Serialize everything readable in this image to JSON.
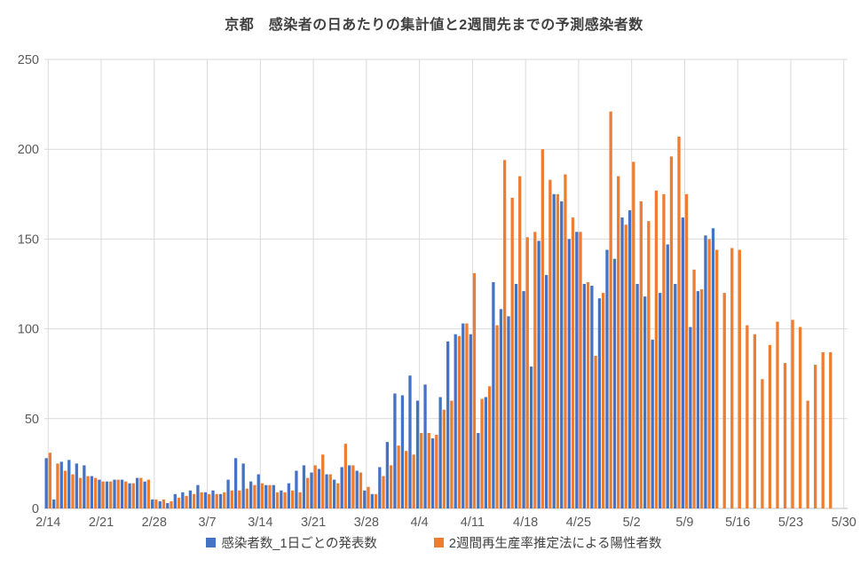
{
  "title": "京都　感染者の日あたりの集計値と2週間先までの予測感染者数",
  "colors": {
    "blue": "#4472C4",
    "orange": "#ED7D31",
    "gridline": "#D9D9D9",
    "axis_line": "#BFBFBF",
    "axis_text": "#595959",
    "title_text": "#404040"
  },
  "legend": {
    "items": [
      {
        "label": "感染者数_1日ごとの発表数",
        "color_key": "blue"
      },
      {
        "label": "2週間再生産率推定法による陽性者数",
        "color_key": "orange"
      }
    ]
  },
  "chart_data": {
    "type": "bar",
    "title": "京都　感染者の日あたりの集計値と2週間先までの予測感染者数",
    "xlabel": "",
    "ylabel": "",
    "ylim": [
      0,
      250
    ],
    "ytick_step": 50,
    "ytick_labels": [
      "0",
      "50",
      "100",
      "150",
      "200",
      "250"
    ],
    "grid": true,
    "legend_position": "bottom",
    "tick_every": 7,
    "x_tick_labels": [
      "2/14",
      "2/21",
      "2/28",
      "3/7",
      "3/14",
      "3/21",
      "3/28",
      "4/4",
      "4/11",
      "4/18",
      "4/25",
      "5/2",
      "5/9",
      "5/16",
      "5/23",
      "5/30"
    ],
    "categories": [
      "2/14",
      "2/15",
      "2/16",
      "2/17",
      "2/18",
      "2/19",
      "2/20",
      "2/21",
      "2/22",
      "2/23",
      "2/24",
      "2/25",
      "2/26",
      "2/27",
      "2/28",
      "3/1",
      "3/2",
      "3/3",
      "3/4",
      "3/5",
      "3/6",
      "3/7",
      "3/8",
      "3/9",
      "3/10",
      "3/11",
      "3/12",
      "3/13",
      "3/14",
      "3/15",
      "3/16",
      "3/17",
      "3/18",
      "3/19",
      "3/20",
      "3/21",
      "3/22",
      "3/23",
      "3/24",
      "3/25",
      "3/26",
      "3/27",
      "3/28",
      "3/29",
      "3/30",
      "3/31",
      "4/1",
      "4/2",
      "4/3",
      "4/4",
      "4/5",
      "4/6",
      "4/7",
      "4/8",
      "4/9",
      "4/10",
      "4/11",
      "4/12",
      "4/13",
      "4/14",
      "4/15",
      "4/16",
      "4/17",
      "4/18",
      "4/19",
      "4/20",
      "4/21",
      "4/22",
      "4/23",
      "4/24",
      "4/25",
      "4/26",
      "4/27",
      "4/28",
      "4/29",
      "4/30",
      "5/1",
      "5/2",
      "5/3",
      "5/4",
      "5/5",
      "5/6",
      "5/7",
      "5/8",
      "5/9",
      "5/10",
      "5/11",
      "5/12",
      "5/13",
      "5/14",
      "5/15",
      "5/16",
      "5/17",
      "5/18",
      "5/19",
      "5/20",
      "5/21",
      "5/22",
      "5/23",
      "5/24",
      "5/25",
      "5/26",
      "5/27",
      "5/28",
      "5/29",
      "5/30"
    ],
    "series": [
      {
        "name": "感染者数_1日ごとの発表数",
        "color_key": "blue",
        "values": [
          28,
          5,
          26,
          27,
          25,
          24,
          18,
          16,
          15,
          16,
          16,
          14,
          17,
          15,
          5,
          4,
          3,
          8,
          9,
          10,
          13,
          9,
          10,
          8,
          16,
          28,
          25,
          15,
          19,
          13,
          13,
          10,
          14,
          21,
          24,
          20,
          22,
          19,
          16,
          23,
          24,
          21,
          10,
          8,
          23,
          37,
          64,
          63,
          74,
          60,
          69,
          39,
          62,
          93,
          97,
          103,
          97,
          42,
          62,
          126,
          111,
          107,
          125,
          121,
          79,
          149,
          130,
          175,
          171,
          150,
          154,
          125,
          124,
          117,
          144,
          139,
          162,
          166,
          125,
          118,
          94,
          120,
          147,
          125,
          162,
          101,
          121,
          152,
          156,
          null,
          null,
          null,
          null,
          null,
          null,
          null,
          null,
          null,
          null,
          null,
          null,
          null,
          null,
          null,
          null,
          null
        ]
      },
      {
        "name": "2週間再生産率推定法による陽性者数",
        "color_key": "orange",
        "values": [
          31,
          25,
          21,
          19,
          17,
          18,
          17,
          15,
          15,
          16,
          15,
          14,
          17,
          16,
          5,
          5,
          4,
          6,
          7,
          8,
          9,
          8,
          8,
          9,
          10,
          10,
          11,
          13,
          14,
          13,
          9,
          9,
          10,
          9,
          17,
          24,
          30,
          19,
          14,
          36,
          24,
          20,
          12,
          8,
          18,
          24,
          35,
          32,
          30,
          42,
          42,
          41,
          55,
          60,
          96,
          103,
          131,
          61,
          68,
          102,
          194,
          173,
          185,
          151,
          154,
          200,
          183,
          175,
          186,
          162,
          154,
          126,
          85,
          120,
          221,
          185,
          158,
          193,
          171,
          160,
          177,
          175,
          196,
          207,
          175,
          133,
          122,
          150,
          144,
          120,
          145,
          144,
          102,
          97,
          72,
          91,
          104,
          81,
          105,
          101,
          60,
          80,
          87,
          87,
          null,
          null
        ]
      }
    ]
  }
}
